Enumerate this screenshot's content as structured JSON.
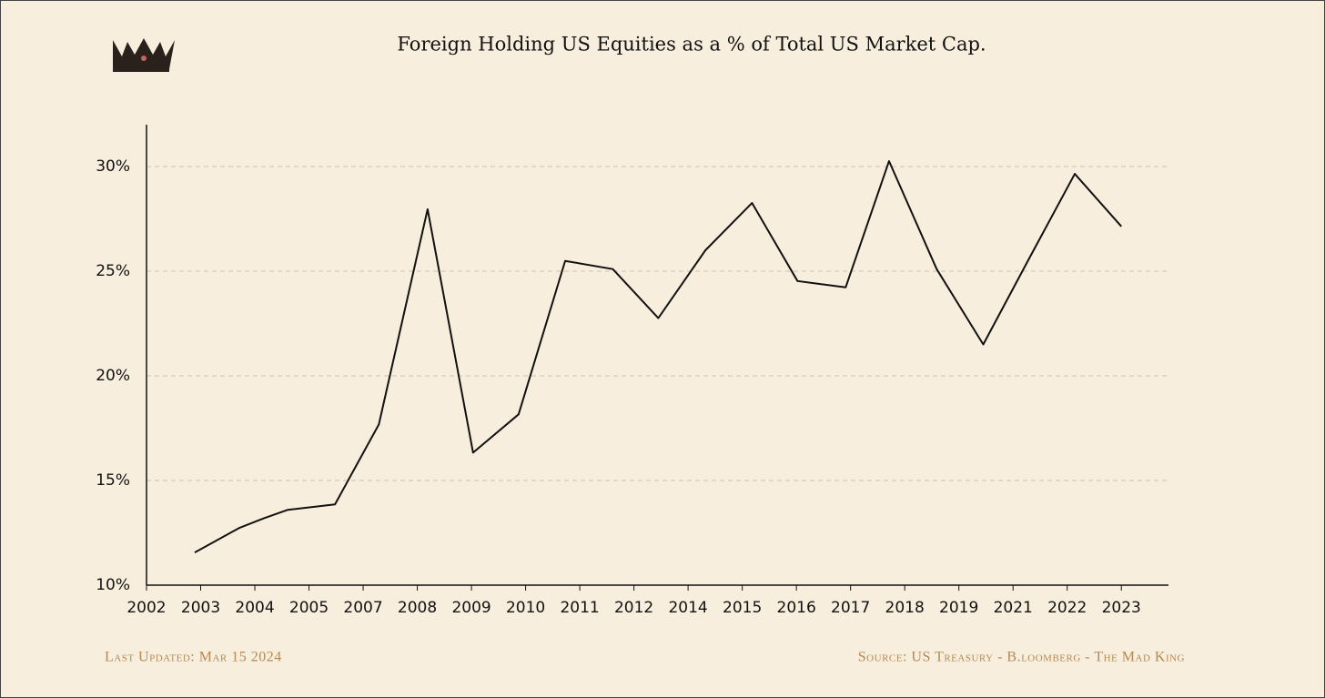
{
  "chart_data": {
    "type": "line",
    "title": "Foreign Holding US Equities as a % of Total US Market Cap.",
    "annotations": [
      "Last Updated: Mar 15 2024",
      "Source: US Treasury  - B.loomberg - The Mad King"
    ],
    "x": [
      0.89,
      1.71,
      2.17,
      2.61,
      3.48,
      4.29,
      5.19,
      6.03,
      6.87,
      7.73,
      8.61,
      9.45,
      10.32,
      11.18,
      12.02,
      12.91,
      13.71,
      14.59,
      15.45,
      16.29,
      17.14,
      18.0
    ],
    "series": [
      {
        "name": "Foreign holding",
        "color": "#111111",
        "values": [
          11.56,
          12.73,
          13.2,
          13.6,
          13.86,
          17.68,
          27.96,
          16.33,
          18.16,
          25.49,
          25.1,
          22.76,
          26.0,
          28.26,
          24.53,
          24.23,
          30.26,
          25.1,
          21.5,
          25.57,
          29.65,
          27.14
        ]
      }
    ],
    "xlim": [
      0,
      18.87
    ],
    "xticks": [
      {
        "value": 0,
        "label": "2002"
      },
      {
        "value": 1,
        "label": "2003"
      },
      {
        "value": 2,
        "label": "2004"
      },
      {
        "value": 3,
        "label": "2005"
      },
      {
        "value": 4,
        "label": "2007"
      },
      {
        "value": 5,
        "label": "2008"
      },
      {
        "value": 6,
        "label": "2009"
      },
      {
        "value": 7,
        "label": "2010"
      },
      {
        "value": 8,
        "label": "2011"
      },
      {
        "value": 9,
        "label": "2012"
      },
      {
        "value": 10,
        "label": "2014"
      },
      {
        "value": 11,
        "label": "2015"
      },
      {
        "value": 12,
        "label": "2016"
      },
      {
        "value": 13,
        "label": "2017"
      },
      {
        "value": 14,
        "label": "2018"
      },
      {
        "value": 15,
        "label": "2019"
      },
      {
        "value": 16,
        "label": "2021"
      },
      {
        "value": 17,
        "label": "2022"
      },
      {
        "value": 18,
        "label": "2023"
      }
    ],
    "ylim": [
      10,
      32
    ],
    "yticks": [
      {
        "value": 10,
        "label": "10%"
      },
      {
        "value": 15,
        "label": "15%"
      },
      {
        "value": 20,
        "label": "20%"
      },
      {
        "value": 25,
        "label": "25%"
      },
      {
        "value": 30,
        "label": "30%"
      }
    ],
    "grid": true
  }
}
